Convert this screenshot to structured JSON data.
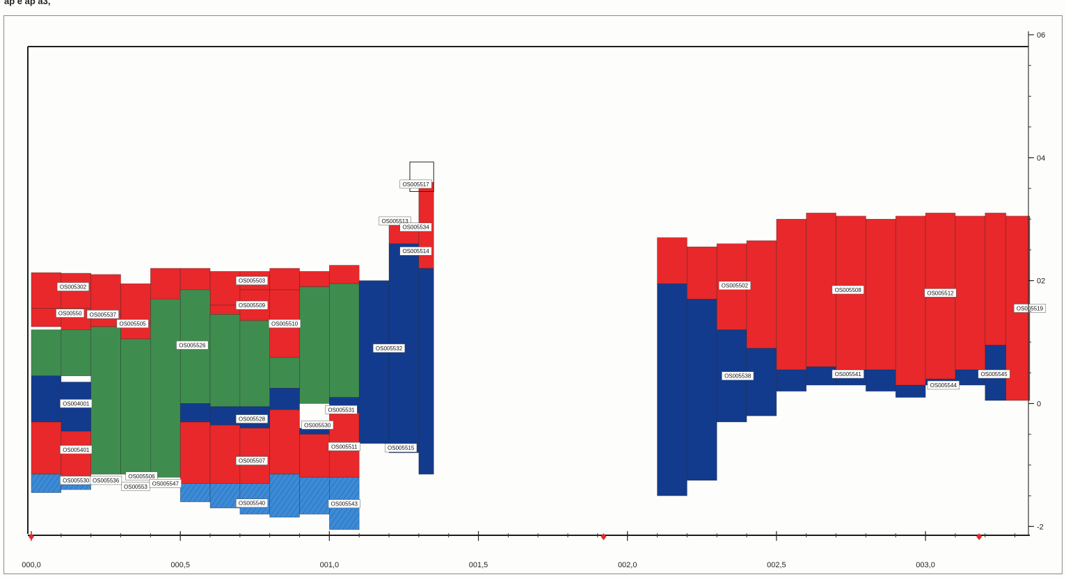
{
  "header_text": "ap e ap a3,",
  "chart_data": {
    "type": "bar",
    "x_axis": {
      "range": [
        0.0,
        3.35
      ],
      "ticks": [
        "000,0",
        "000,5",
        "001,0",
        "001,5",
        "002,0",
        "002,5",
        "003,0"
      ],
      "tick_values": [
        0.0,
        0.5,
        1.0,
        1.5,
        2.0,
        2.5,
        3.0
      ]
    },
    "y_axis": {
      "range": [
        -2.2,
        6.0
      ],
      "ticks": [
        "06",
        "04",
        "02",
        "0",
        "-2"
      ],
      "tick_values": [
        6,
        4,
        2,
        0,
        -2
      ],
      "position": "right"
    },
    "colors": {
      "red": "#e8282a",
      "blue": "#123b8e",
      "green": "#3f8c4f",
      "lightblue": "#3d8ad6",
      "frame": "#1c1c1c"
    },
    "markers": [
      0.0,
      1.92,
      3.18
    ],
    "segments": [
      {
        "x0": 0.0,
        "x1": 0.1,
        "y0": 1.55,
        "y1": 2.13,
        "color": "red"
      },
      {
        "x0": 0.1,
        "x1": 0.2,
        "y0": 1.55,
        "y1": 2.12,
        "color": "red"
      },
      {
        "x0": 0.2,
        "x1": 0.3,
        "y0": 1.35,
        "y1": 2.1,
        "color": "red"
      },
      {
        "x0": 0.3,
        "x1": 0.4,
        "y0": 1.3,
        "y1": 1.95,
        "color": "red"
      },
      {
        "x0": 0.4,
        "x1": 0.5,
        "y0": 1.25,
        "y1": 2.2,
        "color": "red"
      },
      {
        "x0": 0.5,
        "x1": 0.6,
        "y0": 1.8,
        "y1": 2.2,
        "color": "red"
      },
      {
        "x0": 0.6,
        "x1": 0.7,
        "y0": 1.6,
        "y1": 2.15,
        "color": "red"
      },
      {
        "x0": 0.7,
        "x1": 0.8,
        "y0": 1.85,
        "y1": 2.15,
        "color": "red"
      },
      {
        "x0": 0.8,
        "x1": 0.9,
        "y0": 1.85,
        "y1": 2.2,
        "color": "red"
      },
      {
        "x0": 0.9,
        "x1": 1.0,
        "y0": 1.9,
        "y1": 2.15,
        "color": "red"
      },
      {
        "x0": 1.0,
        "x1": 1.1,
        "y0": 1.95,
        "y1": 2.25,
        "color": "red"
      },
      {
        "x0": 0.0,
        "x1": 0.1,
        "y0": 1.25,
        "y1": 1.55,
        "color": "red"
      },
      {
        "x0": 0.1,
        "x1": 0.2,
        "y0": 1.2,
        "y1": 1.55,
        "color": "red"
      },
      {
        "x0": 0.2,
        "x1": 0.3,
        "y0": 1.25,
        "y1": 1.45,
        "color": "red"
      },
      {
        "x0": 0.3,
        "x1": 0.4,
        "y0": 1.05,
        "y1": 1.3,
        "color": "red"
      },
      {
        "x0": 0.6,
        "x1": 0.7,
        "y0": 1.45,
        "y1": 1.6,
        "color": "red"
      },
      {
        "x0": 0.7,
        "x1": 0.8,
        "y0": 1.35,
        "y1": 1.85,
        "color": "red"
      },
      {
        "x0": 0.8,
        "x1": 0.9,
        "y0": 0.75,
        "y1": 1.85,
        "color": "red"
      },
      {
        "x0": 0.0,
        "x1": 0.1,
        "y0": 0.45,
        "y1": 1.2,
        "color": "green"
      },
      {
        "x0": 0.1,
        "x1": 0.2,
        "y0": 0.45,
        "y1": 1.2,
        "color": "green"
      },
      {
        "x0": 0.2,
        "x1": 0.3,
        "y0": -1.15,
        "y1": 1.25,
        "color": "green"
      },
      {
        "x0": 0.3,
        "x1": 0.4,
        "y0": -1.15,
        "y1": 1.05,
        "color": "green"
      },
      {
        "x0": 0.4,
        "x1": 0.5,
        "y0": -1.2,
        "y1": 1.7,
        "color": "green"
      },
      {
        "x0": 0.5,
        "x1": 0.6,
        "y0": -0.0,
        "y1": 1.85,
        "color": "green"
      },
      {
        "x0": 0.6,
        "x1": 0.7,
        "y0": -0.05,
        "y1": 1.45,
        "color": "green"
      },
      {
        "x0": 0.7,
        "x1": 0.8,
        "y0": -0.05,
        "y1": 1.35,
        "color": "green"
      },
      {
        "x0": 0.8,
        "x1": 0.9,
        "y0": 0.25,
        "y1": 0.75,
        "color": "green"
      },
      {
        "x0": 0.9,
        "x1": 1.0,
        "y0": 0.0,
        "y1": 1.9,
        "color": "green"
      },
      {
        "x0": 1.0,
        "x1": 1.1,
        "y0": 0.1,
        "y1": 1.95,
        "color": "green"
      },
      {
        "x0": 0.0,
        "x1": 0.1,
        "y0": -0.3,
        "y1": 0.45,
        "color": "blue"
      },
      {
        "x0": 0.1,
        "x1": 0.2,
        "y0": -0.45,
        "y1": 0.35,
        "color": "blue"
      },
      {
        "x0": 0.5,
        "x1": 0.6,
        "y0": -0.3,
        "y1": -0.0,
        "color": "blue"
      },
      {
        "x0": 0.6,
        "x1": 0.7,
        "y0": -0.35,
        "y1": -0.05,
        "color": "blue"
      },
      {
        "x0": 0.7,
        "x1": 0.8,
        "y0": -0.4,
        "y1": -0.05,
        "color": "blue"
      },
      {
        "x0": 0.8,
        "x1": 0.9,
        "y0": -0.1,
        "y1": 0.25,
        "color": "blue"
      },
      {
        "x0": 0.9,
        "x1": 1.0,
        "y0": -0.5,
        "y1": -0.4,
        "color": "blue"
      },
      {
        "x0": 1.0,
        "x1": 1.1,
        "y0": -0.15,
        "y1": 0.1,
        "color": "blue"
      },
      {
        "x0": 0.0,
        "x1": 0.1,
        "y0": -1.15,
        "y1": -0.3,
        "color": "red"
      },
      {
        "x0": 0.1,
        "x1": 0.2,
        "y0": -1.2,
        "y1": -0.45,
        "color": "red"
      },
      {
        "x0": 0.5,
        "x1": 0.6,
        "y0": -1.3,
        "y1": -0.3,
        "color": "red"
      },
      {
        "x0": 0.6,
        "x1": 0.7,
        "y0": -1.3,
        "y1": -0.35,
        "color": "red"
      },
      {
        "x0": 0.7,
        "x1": 0.8,
        "y0": -1.3,
        "y1": -0.4,
        "color": "red"
      },
      {
        "x0": 0.8,
        "x1": 0.9,
        "y0": -1.15,
        "y1": -0.1,
        "color": "red"
      },
      {
        "x0": 0.9,
        "x1": 1.0,
        "y0": -1.2,
        "y1": -0.5,
        "color": "red"
      },
      {
        "x0": 1.0,
        "x1": 1.1,
        "y0": -1.2,
        "y1": -0.15,
        "color": "red"
      },
      {
        "x0": 0.0,
        "x1": 0.1,
        "y0": -1.45,
        "y1": -1.15,
        "color": "lightblue"
      },
      {
        "x0": 0.1,
        "x1": 0.2,
        "y0": -1.4,
        "y1": -1.2,
        "color": "lightblue"
      },
      {
        "x0": 0.5,
        "x1": 0.6,
        "y0": -1.6,
        "y1": -1.3,
        "color": "lightblue"
      },
      {
        "x0": 0.6,
        "x1": 0.7,
        "y0": -1.7,
        "y1": -1.3,
        "color": "lightblue"
      },
      {
        "x0": 0.7,
        "x1": 0.8,
        "y0": -1.8,
        "y1": -1.3,
        "color": "lightblue"
      },
      {
        "x0": 0.8,
        "x1": 0.9,
        "y0": -1.85,
        "y1": -1.15,
        "color": "lightblue"
      },
      {
        "x0": 0.9,
        "x1": 1.0,
        "y0": -1.8,
        "y1": -1.2,
        "color": "lightblue"
      },
      {
        "x0": 1.0,
        "x1": 1.1,
        "y0": -2.05,
        "y1": -1.2,
        "color": "lightblue"
      },
      {
        "x0": 1.1,
        "x1": 1.2,
        "y0": -0.65,
        "y1": 2.0,
        "color": "blue"
      },
      {
        "x0": 1.2,
        "x1": 1.3,
        "y0": -0.8,
        "y1": 2.6,
        "color": "blue"
      },
      {
        "x0": 1.3,
        "x1": 1.35,
        "y0": -1.15,
        "y1": 2.2,
        "color": "blue"
      },
      {
        "x0": 1.2,
        "x1": 1.3,
        "y0": 2.6,
        "y1": 2.9,
        "color": "red"
      },
      {
        "x0": 1.3,
        "x1": 1.35,
        "y0": 2.2,
        "y1": 3.6,
        "color": "red"
      },
      {
        "x0": 2.1,
        "x1": 2.2,
        "y0": -1.5,
        "y1": 1.95,
        "color": "blue"
      },
      {
        "x0": 2.2,
        "x1": 2.3,
        "y0": -1.25,
        "y1": 1.7,
        "color": "blue"
      },
      {
        "x0": 2.3,
        "x1": 2.4,
        "y0": -0.3,
        "y1": 1.2,
        "color": "blue"
      },
      {
        "x0": 2.4,
        "x1": 2.5,
        "y0": -0.2,
        "y1": 0.9,
        "color": "blue"
      },
      {
        "x0": 2.5,
        "x1": 2.6,
        "y0": 0.2,
        "y1": 0.55,
        "color": "blue"
      },
      {
        "x0": 2.6,
        "x1": 2.7,
        "y0": 0.3,
        "y1": 0.6,
        "color": "blue"
      },
      {
        "x0": 2.7,
        "x1": 2.8,
        "y0": 0.3,
        "y1": 0.55,
        "color": "blue"
      },
      {
        "x0": 2.8,
        "x1": 2.9,
        "y0": 0.2,
        "y1": 0.55,
        "color": "blue"
      },
      {
        "x0": 2.9,
        "x1": 3.0,
        "y0": 0.1,
        "y1": 0.3,
        "color": "blue"
      },
      {
        "x0": 3.0,
        "x1": 3.1,
        "y0": 0.3,
        "y1": 0.4,
        "color": "blue"
      },
      {
        "x0": 3.1,
        "x1": 3.2,
        "y0": 0.3,
        "y1": 0.55,
        "color": "blue"
      },
      {
        "x0": 3.2,
        "x1": 3.27,
        "y0": 0.05,
        "y1": 0.95,
        "color": "blue"
      },
      {
        "x0": 2.1,
        "x1": 2.2,
        "y0": 1.95,
        "y1": 2.7,
        "color": "red"
      },
      {
        "x0": 2.2,
        "x1": 2.3,
        "y0": 1.7,
        "y1": 2.55,
        "color": "red"
      },
      {
        "x0": 2.3,
        "x1": 2.4,
        "y0": 1.2,
        "y1": 2.6,
        "color": "red"
      },
      {
        "x0": 2.4,
        "x1": 2.5,
        "y0": 0.9,
        "y1": 2.65,
        "color": "red"
      },
      {
        "x0": 2.5,
        "x1": 2.6,
        "y0": 0.55,
        "y1": 3.0,
        "color": "red"
      },
      {
        "x0": 2.6,
        "x1": 2.7,
        "y0": 0.6,
        "y1": 3.1,
        "color": "red"
      },
      {
        "x0": 2.7,
        "x1": 2.8,
        "y0": 0.55,
        "y1": 3.05,
        "color": "red"
      },
      {
        "x0": 2.8,
        "x1": 2.9,
        "y0": 0.55,
        "y1": 3.0,
        "color": "red"
      },
      {
        "x0": 2.9,
        "x1": 3.0,
        "y0": 0.3,
        "y1": 3.05,
        "color": "red"
      },
      {
        "x0": 3.0,
        "x1": 3.1,
        "y0": 0.4,
        "y1": 3.1,
        "color": "red"
      },
      {
        "x0": 3.1,
        "x1": 3.2,
        "y0": 0.55,
        "y1": 3.05,
        "color": "red"
      },
      {
        "x0": 3.2,
        "x1": 3.27,
        "y0": 0.95,
        "y1": 3.1,
        "color": "red"
      },
      {
        "x0": 3.27,
        "x1": 3.35,
        "y0": 0.05,
        "y1": 3.05,
        "color": "red"
      }
    ],
    "labels": [
      {
        "text": "OS005302",
        "x": 0.14,
        "y": 1.9
      },
      {
        "text": "OS00550",
        "x": 0.13,
        "y": 1.47
      },
      {
        "text": "OS005537",
        "x": 0.24,
        "y": 1.45
      },
      {
        "text": "OS005505",
        "x": 0.34,
        "y": 1.3
      },
      {
        "text": "OS005526",
        "x": 0.54,
        "y": 0.95
      },
      {
        "text": "OS005503",
        "x": 0.74,
        "y": 2.0
      },
      {
        "text": "OS005509",
        "x": 0.74,
        "y": 1.6
      },
      {
        "text": "OS005510",
        "x": 0.85,
        "y": 1.3
      },
      {
        "text": "OS004001",
        "x": 0.15,
        "y": 0.0
      },
      {
        "text": "OS005401",
        "x": 0.15,
        "y": -0.75
      },
      {
        "text": "OS005530",
        "x": 0.15,
        "y": -1.25
      },
      {
        "text": "OS005536",
        "x": 0.25,
        "y": -1.25
      },
      {
        "text": "OS005506",
        "x": 0.37,
        "y": -1.18
      },
      {
        "text": "OS00553",
        "x": 0.35,
        "y": -1.35
      },
      {
        "text": "OS005547",
        "x": 0.45,
        "y": -1.3
      },
      {
        "text": "OS005528",
        "x": 0.74,
        "y": -0.25
      },
      {
        "text": "OS005507",
        "x": 0.74,
        "y": -0.93
      },
      {
        "text": "OS005540",
        "x": 0.74,
        "y": -1.62
      },
      {
        "text": "OS005530",
        "x": 0.96,
        "y": -0.35
      },
      {
        "text": "OS005531",
        "x": 1.04,
        "y": -0.1
      },
      {
        "text": "OS005511",
        "x": 1.05,
        "y": -0.7
      },
      {
        "text": "OS005543",
        "x": 1.05,
        "y": -1.63
      },
      {
        "text": "OS005532",
        "x": 1.2,
        "y": 0.9
      },
      {
        "text": "OS005517",
        "x": 1.29,
        "y": 3.57
      },
      {
        "text": "OS005513",
        "x": 1.22,
        "y": 2.97
      },
      {
        "text": "OS005534",
        "x": 1.29,
        "y": 2.87
      },
      {
        "text": "OS005514",
        "x": 1.29,
        "y": 2.48
      },
      {
        "text": "OS005515",
        "x": 1.24,
        "y": -0.72
      },
      {
        "text": "OS005502",
        "x": 2.36,
        "y": 1.92
      },
      {
        "text": "OS005508",
        "x": 2.74,
        "y": 1.85
      },
      {
        "text": "OS005512",
        "x": 3.05,
        "y": 1.8
      },
      {
        "text": "OS005519",
        "x": 3.35,
        "y": 1.55
      },
      {
        "text": "OS005538",
        "x": 2.37,
        "y": 0.45
      },
      {
        "text": "OS005541",
        "x": 2.74,
        "y": 0.48
      },
      {
        "text": "OS005544",
        "x": 3.06,
        "y": 0.3
      },
      {
        "text": "OS005545",
        "x": 3.23,
        "y": 0.48
      }
    ]
  }
}
